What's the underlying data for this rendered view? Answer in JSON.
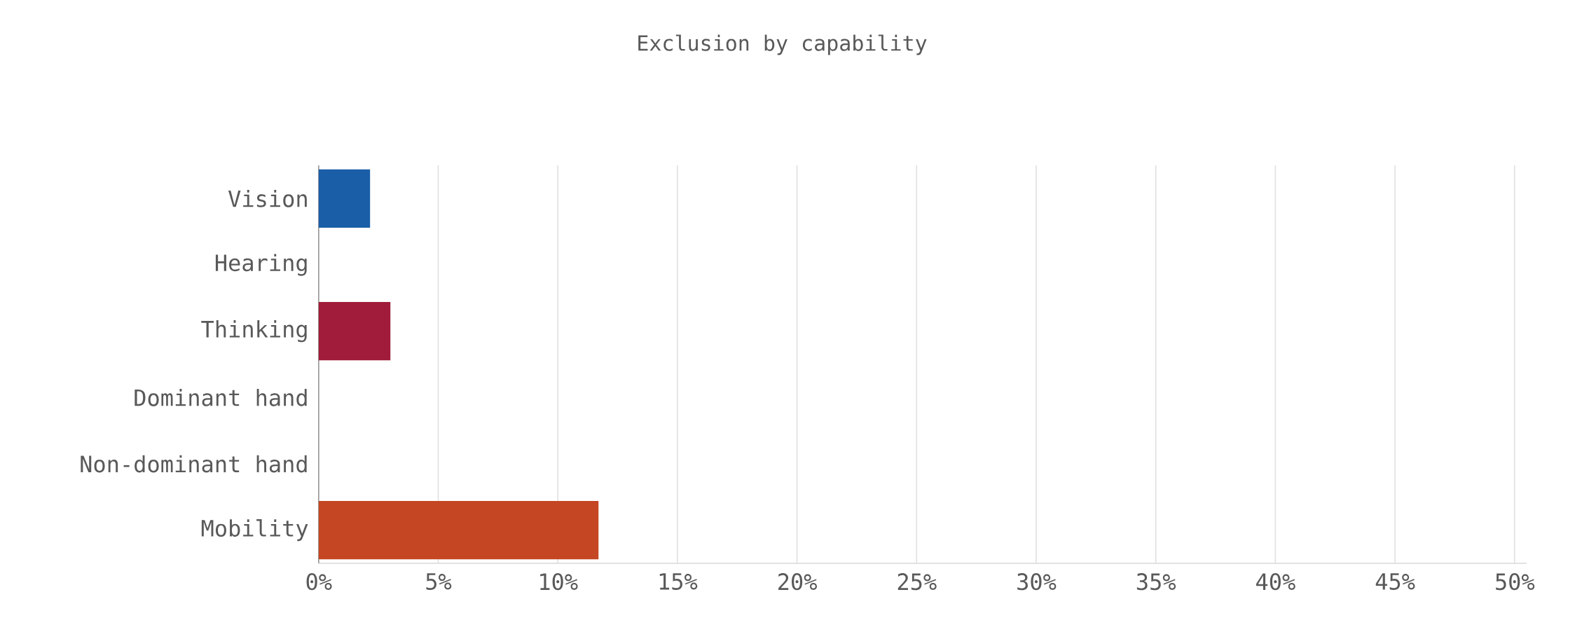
{
  "chart_data": {
    "type": "bar",
    "orientation": "horizontal",
    "title": "Exclusion by capability",
    "categories": [
      "Vision",
      "Hearing",
      "Thinking",
      "Dominant hand",
      "Non-dominant hand",
      "Mobility"
    ],
    "values": [
      2.15,
      0,
      3.0,
      0,
      0,
      11.7
    ],
    "colors": [
      "#1a5ea8",
      "#1a5ea8",
      "#a01c3a",
      "#a01c3a",
      "#c44622",
      "#c44622"
    ],
    "xlim": [
      0,
      50.5
    ],
    "xticks": [
      {
        "value": 0,
        "label": "0%"
      },
      {
        "value": 5,
        "label": "5%"
      },
      {
        "value": 10,
        "label": "10%"
      },
      {
        "value": 15,
        "label": "15%"
      },
      {
        "value": 20,
        "label": "20%"
      },
      {
        "value": 25,
        "label": "25%"
      },
      {
        "value": 30,
        "label": "30%"
      },
      {
        "value": 35,
        "label": "35%"
      },
      {
        "value": 40,
        "label": "40%"
      },
      {
        "value": 45,
        "label": "45%"
      },
      {
        "value": 50,
        "label": "50%"
      }
    ],
    "grid": "x"
  }
}
